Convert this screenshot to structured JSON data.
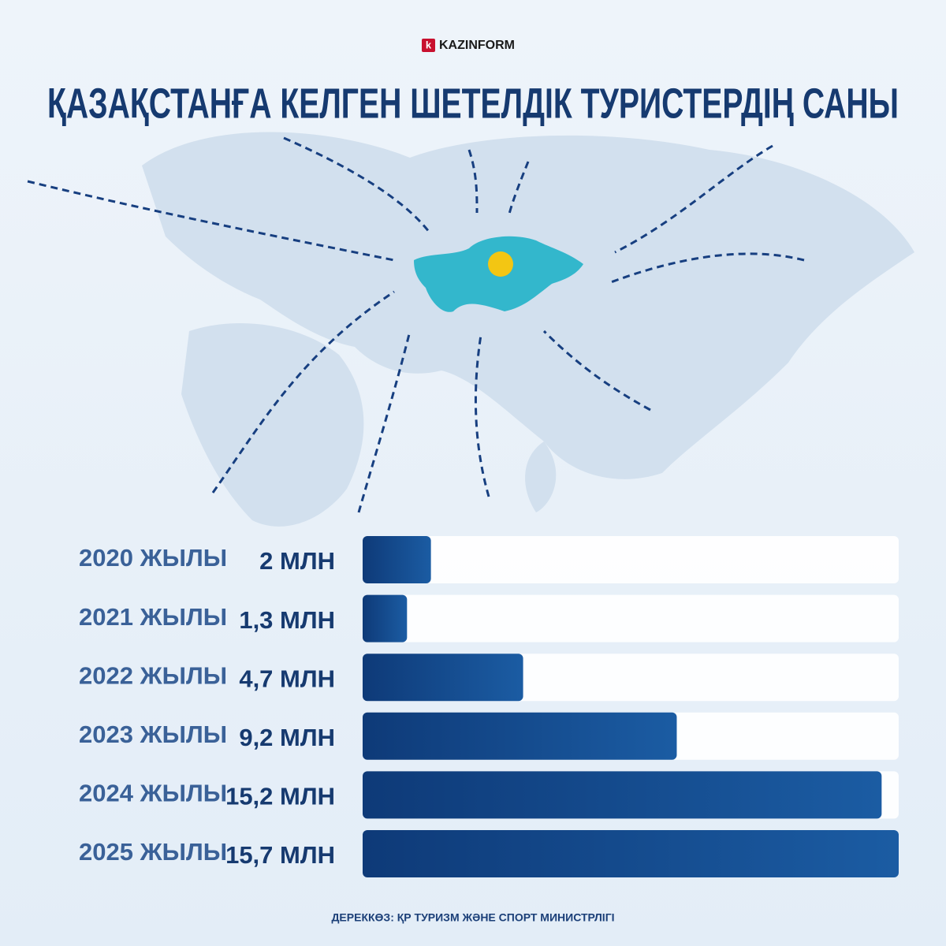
{
  "brand_mark": "k",
  "brand": "KAZINFORM",
  "chart_data": {
    "type": "bar",
    "orientation": "horizontal",
    "title": "ҚАЗАҚСТАНҒА КЕЛГЕН ШЕТЕЛДІК ТУРИСТЕРДІҢ САНЫ",
    "categories": [
      "2020 ЖЫЛЫ",
      "2021 ЖЫЛЫ",
      "2022 ЖЫЛЫ",
      "2023 ЖЫЛЫ",
      "2024 ЖЫЛЫ",
      "2025 ЖЫЛЫ"
    ],
    "values": [
      2,
      1.3,
      4.7,
      9.2,
      15.2,
      15.7
    ],
    "value_labels": [
      "2 МЛН",
      "1,3 МЛН",
      "4,7 МЛН",
      "9,2 МЛН",
      "15,2 МЛН",
      "15,7 МЛН"
    ],
    "color": "#10407f",
    "source": "ДЕРЕККӨЗ: ҚР ТУРИЗМ ЖӘНЕ СПОРТ МИНИСТРЛІГІ"
  }
}
